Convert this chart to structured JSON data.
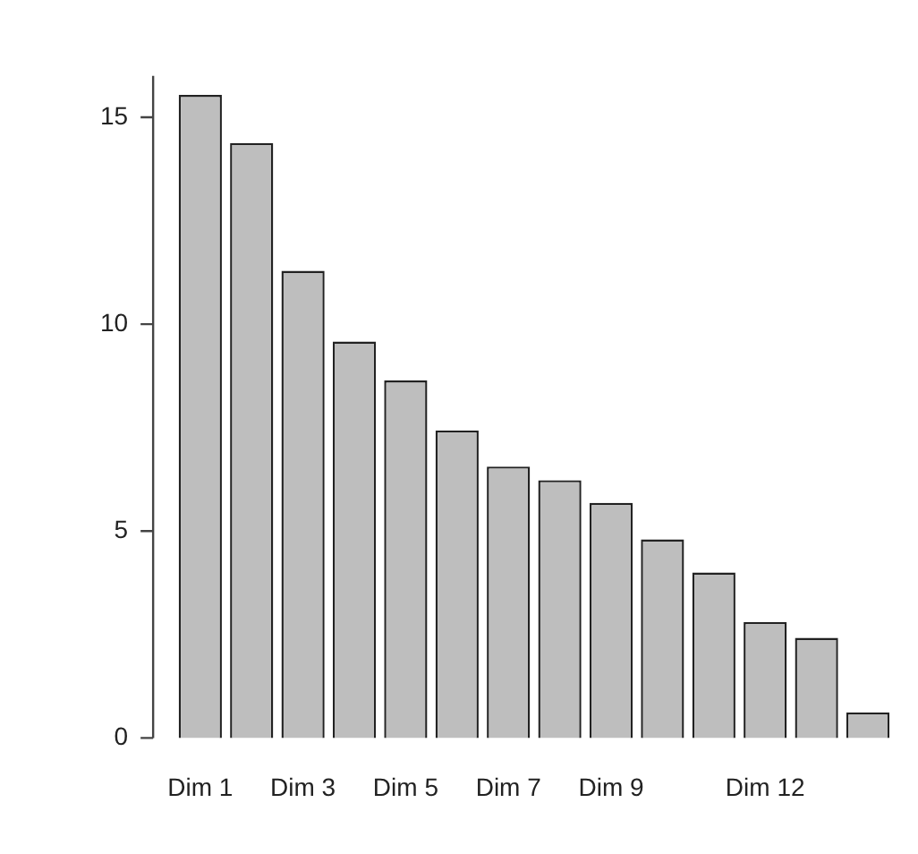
{
  "chart_data": {
    "type": "bar",
    "categories": [
      "Dim 1",
      null,
      "Dim 3",
      null,
      "Dim 5",
      null,
      "Dim 7",
      null,
      "Dim 9",
      null,
      null,
      "Dim 12",
      null,
      null
    ],
    "values": [
      15.54,
      14.38,
      11.29,
      9.58,
      8.64,
      7.43,
      6.56,
      6.23,
      5.68,
      4.8,
      4.0,
      2.8,
      2.42,
      0.62
    ],
    "color": "#bebebe",
    "ylim": [
      0,
      16
    ],
    "yticks": [
      0,
      5,
      10,
      15
    ],
    "grid": false
  }
}
